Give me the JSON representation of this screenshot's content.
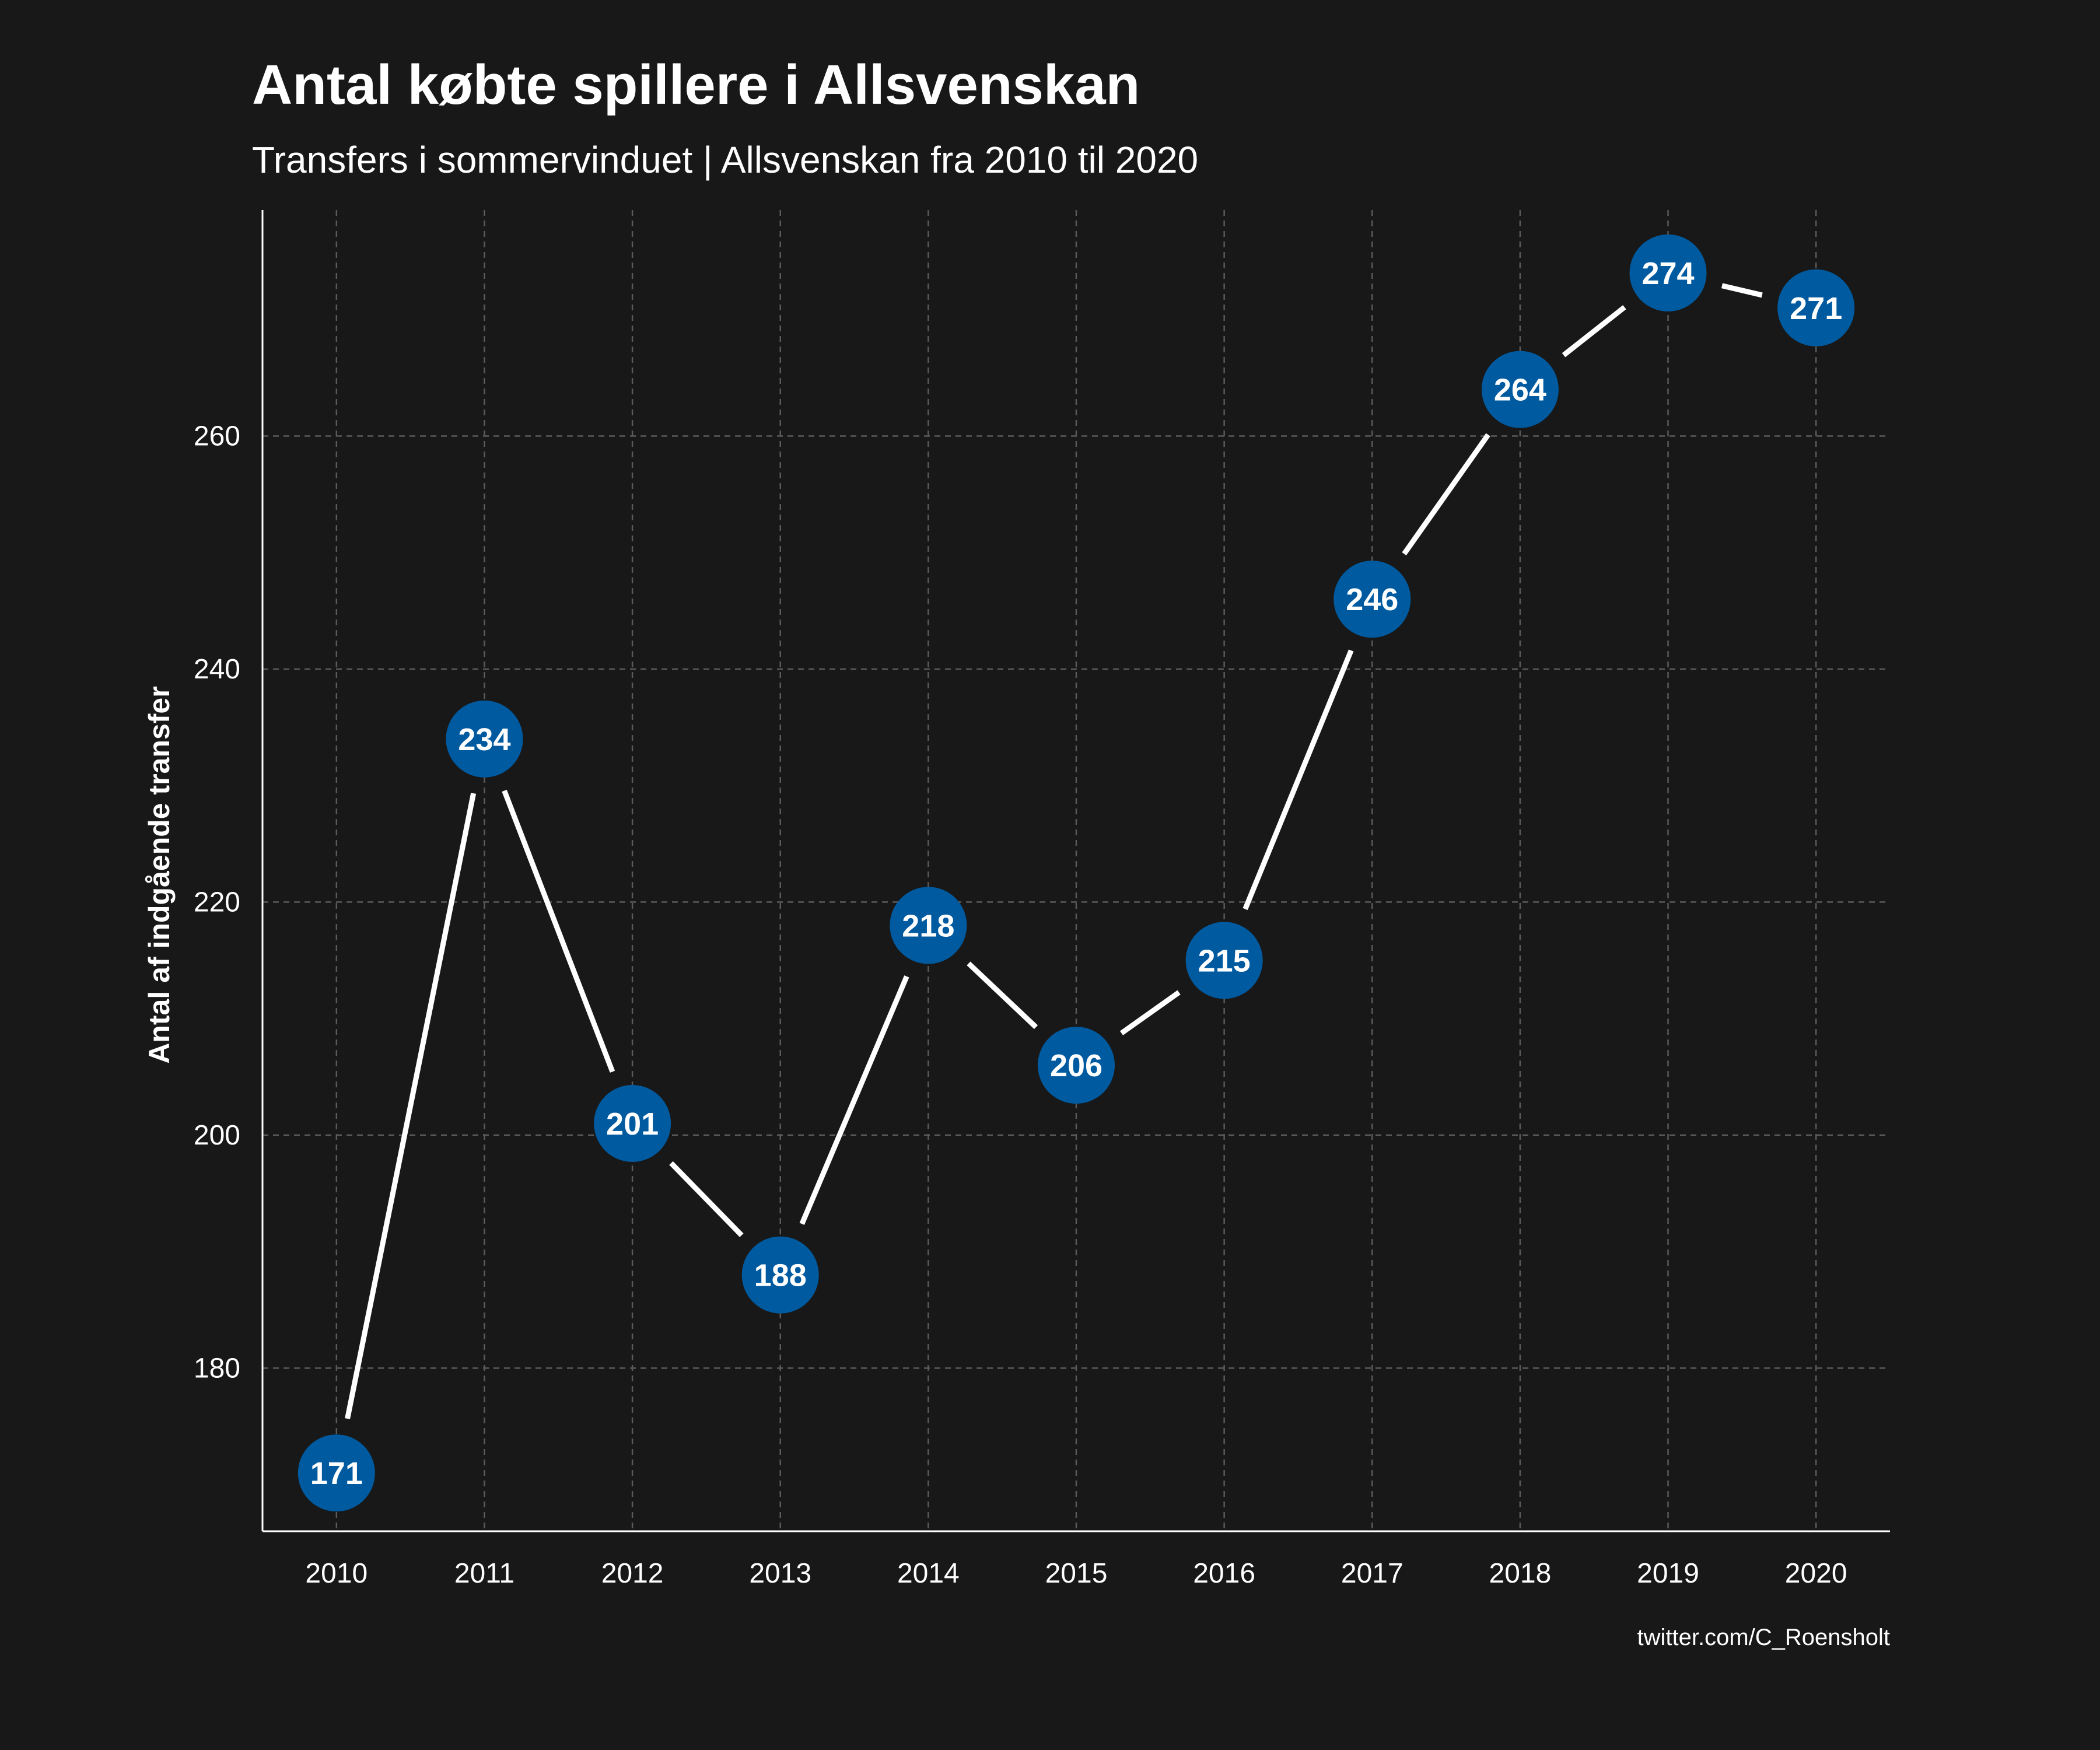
{
  "chart_data": {
    "type": "line",
    "title": "Antal købte spillere i Allsvenskan",
    "subtitle": "Transfers i sommervinduet | Allsvenskan fra 2010 til 2020",
    "xlabel": "",
    "ylabel": "Antal af indgående transfer",
    "caption": "twitter.com/C_Roensholt",
    "x": [
      2010,
      2011,
      2012,
      2013,
      2014,
      2015,
      2016,
      2017,
      2018,
      2019,
      2020
    ],
    "xticks": [
      "2010",
      "2011",
      "2012",
      "2013",
      "2014",
      "2015",
      "2016",
      "2017",
      "2018",
      "2019",
      "2020"
    ],
    "values": [
      171,
      234,
      201,
      188,
      218,
      206,
      215,
      246,
      264,
      274,
      271
    ],
    "yticks": [
      180,
      200,
      220,
      240,
      260
    ],
    "xlim": [
      2009.5,
      2020.5
    ],
    "ylim": [
      166,
      279.4
    ],
    "grid": true,
    "legend": "none",
    "colors": {
      "background": "#181818",
      "point": "#005aa0",
      "line": "#ffffff",
      "grid": "#5a5a5a"
    }
  }
}
